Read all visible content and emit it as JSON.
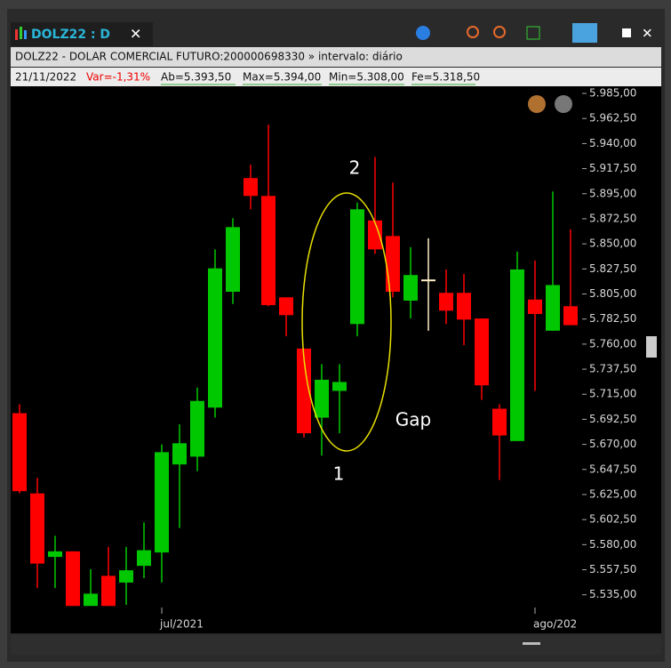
{
  "window": {
    "tab_title": "DOLZ22 : D"
  },
  "chart_data": {
    "type": "candlestick",
    "title": "DOLZ22 - DOLAR COMERCIAL FUTURO:200000698330 » intervalo: diário",
    "info": [
      "21/11/2022",
      "Var=-1,31%",
      "Ab=5.393,50",
      "Max=5.394,00",
      "Min=5.308,00",
      "Fe=5.318,50"
    ],
    "categories": [
      null,
      null,
      null,
      null,
      null,
      null,
      null,
      null,
      "jul/2021",
      null,
      null,
      null,
      null,
      null,
      null,
      null,
      null,
      null,
      null,
      null,
      null,
      null,
      null,
      null,
      null,
      null,
      null,
      null,
      null,
      "ago/202",
      null,
      null
    ],
    "open": [
      5698,
      5626,
      5569,
      5574,
      5525,
      5552,
      5546,
      5561,
      5573,
      5652,
      5659,
      5703,
      5807,
      5909,
      5893,
      5802,
      5756,
      5694,
      5718,
      5778,
      5871,
      5857,
      5799,
      5818,
      5806,
      5806,
      5783,
      5702,
      5673,
      5800,
      5772,
      5794
    ],
    "high": [
      5706,
      5640,
      5588,
      5574,
      5558,
      5578,
      5578,
      5600,
      5670,
      5688,
      5721,
      5845,
      5873,
      5921,
      5957,
      5802,
      5756,
      5742,
      5742,
      5887,
      5928,
      5905,
      5847,
      5855,
      5827,
      5823,
      5783,
      5706,
      5843,
      5835,
      5897,
      5863
    ],
    "low": [
      5626,
      5541,
      5541,
      5525,
      5525,
      5525,
      5526,
      5550,
      5546,
      5595,
      5646,
      5694,
      5796,
      5881,
      5794,
      5767,
      5676,
      5660,
      5680,
      5767,
      5841,
      5802,
      5783,
      5772,
      5778,
      5759,
      5710,
      5638,
      5673,
      5718,
      5772,
      5777
    ],
    "close": [
      5628,
      5563,
      5574,
      5525,
      5536,
      5525,
      5557,
      5575,
      5663,
      5671,
      5709,
      5828,
      5865,
      5893,
      5795,
      5786,
      5680,
      5728,
      5726,
      5881,
      5845,
      5807,
      5822,
      5818,
      5790,
      5782,
      5723,
      5678,
      5827,
      5787,
      5813,
      5777
    ],
    "colors": {
      "up": "#00c800",
      "down": "#ff0000",
      "unchanged": "#fff0c8"
    },
    "ylim": [
      5518,
      5993
    ],
    "yticks": [
      {
        "value": 5535,
        "label": "5.535,00"
      },
      {
        "value": 5557.5,
        "label": "5.557,50"
      },
      {
        "value": 5580,
        "label": "5.580,00"
      },
      {
        "value": 5602.5,
        "label": "5.602,50"
      },
      {
        "value": 5625,
        "label": "5.625,00"
      },
      {
        "value": 5647.5,
        "label": "5.647,50"
      },
      {
        "value": 5670,
        "label": "5.670,00"
      },
      {
        "value": 5692.5,
        "label": "5.692,50"
      },
      {
        "value": 5715,
        "label": "5.715,00"
      },
      {
        "value": 5737.5,
        "label": "5.737,50"
      },
      {
        "value": 5760,
        "label": "5.760,00"
      },
      {
        "value": 5782.5,
        "label": "5.782,50"
      },
      {
        "value": 5805,
        "label": "5.805,00"
      },
      {
        "value": 5827.5,
        "label": "5.827,50"
      },
      {
        "value": 5850,
        "label": "5.850,00"
      },
      {
        "value": 5872.5,
        "label": "5.872,50"
      },
      {
        "value": 5895,
        "label": "5.895,00"
      },
      {
        "value": 5917.5,
        "label": "5.917,50"
      },
      {
        "value": 5940,
        "label": "5.940,00"
      },
      {
        "value": 5962.5,
        "label": "5.962,50"
      },
      {
        "value": 5985,
        "label": "5.985,00"
      }
    ],
    "annotations": [
      "2",
      "1",
      "Gap"
    ]
  }
}
